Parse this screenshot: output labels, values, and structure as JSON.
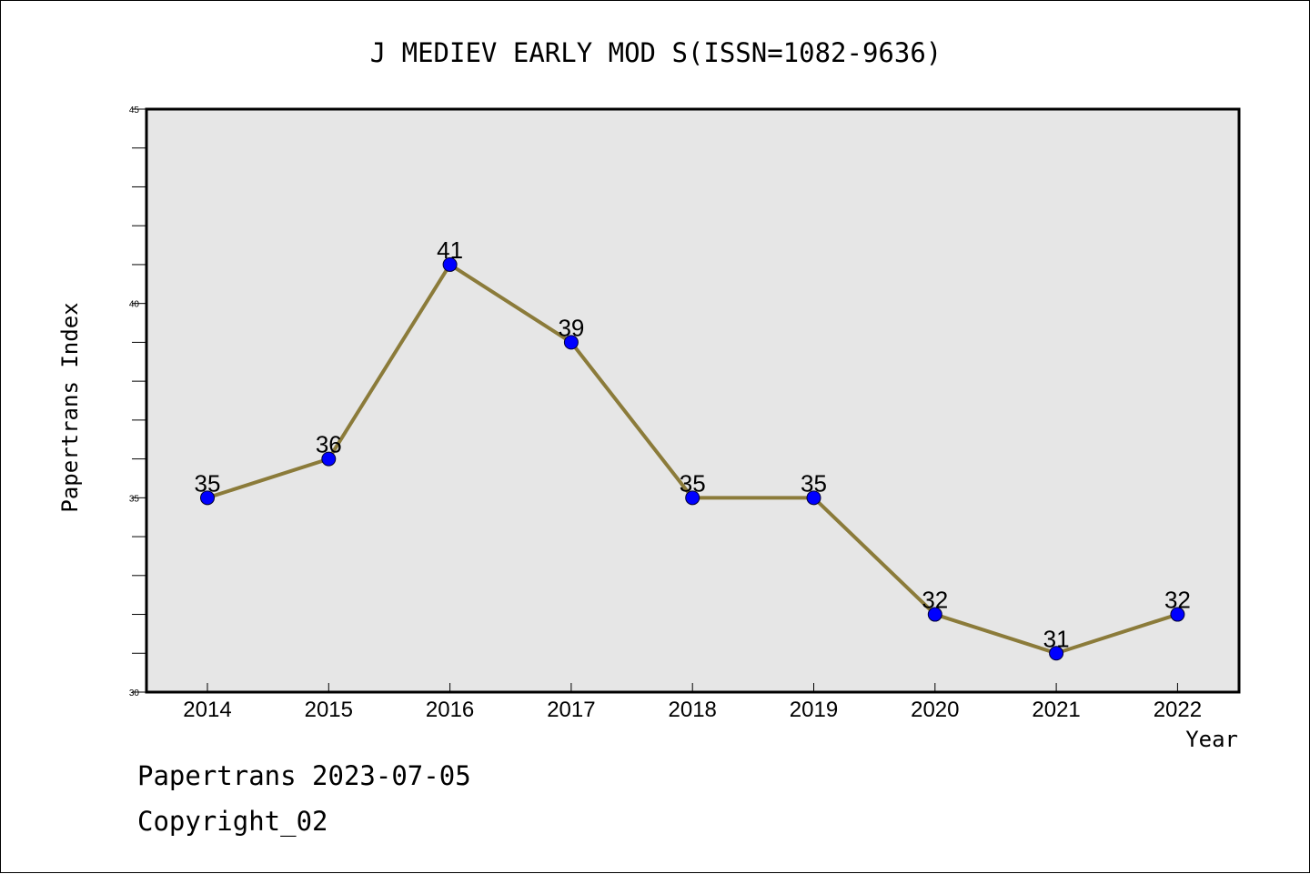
{
  "chart_data": {
    "type": "line",
    "title": "J MEDIEV EARLY MOD S(ISSN=1082-9636)",
    "xlabel": "Year",
    "ylabel": "Papertrans Index",
    "categories": [
      "2014",
      "2015",
      "2016",
      "2017",
      "2018",
      "2019",
      "2020",
      "2021",
      "2022"
    ],
    "values": [
      35,
      36,
      41,
      39,
      35,
      35,
      32,
      31,
      32
    ],
    "data_labels": [
      "35",
      "36",
      "41",
      "39",
      "35",
      "35",
      "32",
      "31",
      "32"
    ],
    "ylim": [
      30,
      45
    ],
    "yticks": [
      "30",
      "35",
      "40",
      "45"
    ],
    "y_minor_step": 1,
    "grid": false,
    "legend": "none",
    "colors": {
      "line": "#8B7B3A",
      "marker": "#0000FF",
      "plot_background": "#E6E6E6",
      "axes": "#000000"
    }
  },
  "footer": {
    "line1": "Papertrans 2023-07-05",
    "line2": "Copyright_02"
  }
}
